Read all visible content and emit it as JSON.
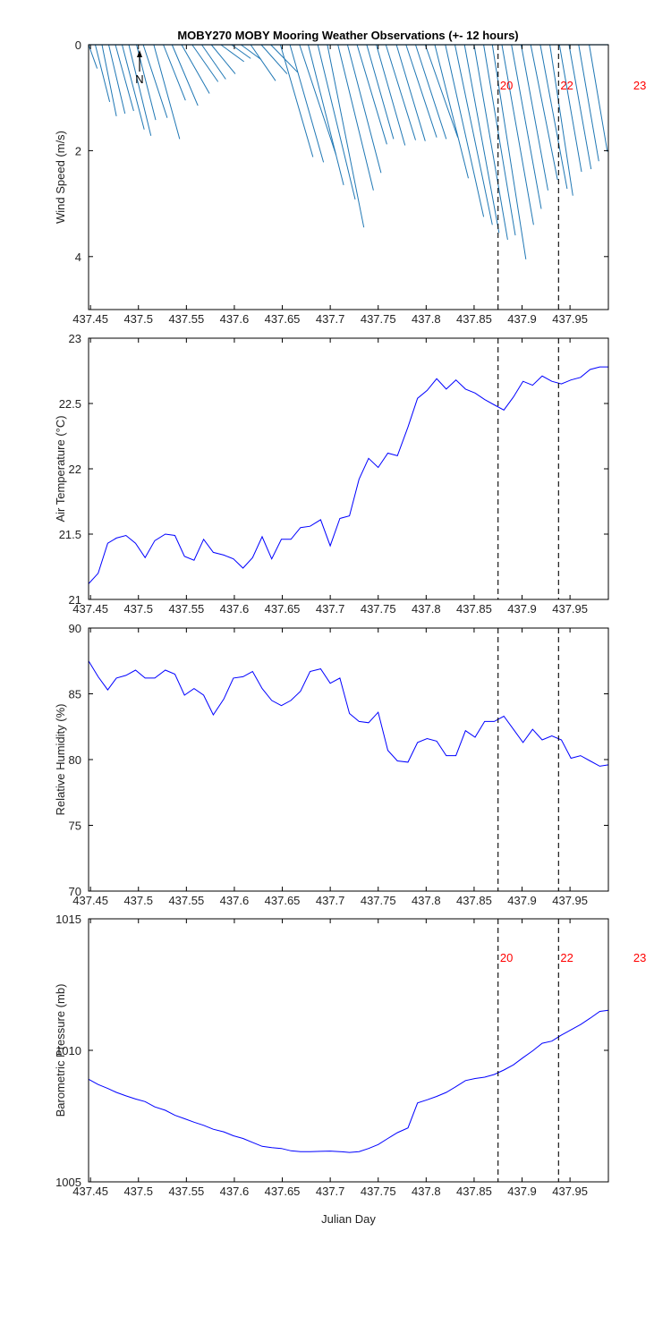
{
  "title": "MOBY270 MOBY Mooring Weather Observations (+- 12 hours)",
  "north_label": "N",
  "colors": {
    "vectors": "#1f77b4",
    "line": "#0000ff",
    "marker": "#ff0000",
    "axis": "#000000"
  },
  "chart_data": [
    {
      "type": "vector",
      "id": "wind",
      "ylabel": "Wind Speed (m/s)",
      "xlim": [
        437.448,
        437.99
      ],
      "ylim": [
        0,
        5
      ],
      "y_reversed": true,
      "x_ticks": [
        437.45,
        437.5,
        437.55,
        437.6,
        437.65,
        437.7,
        437.75,
        437.8,
        437.85,
        437.9,
        437.95
      ],
      "x_tick_labels": [
        "437.45",
        "437.5",
        "437.55",
        "437.6",
        "437.65",
        "437.7",
        "437.75",
        "437.8",
        "437.85",
        "437.9",
        "437.95"
      ],
      "y_ticks": [
        0,
        2,
        4
      ],
      "y_tick_labels": [
        "0",
        "2",
        "4"
      ],
      "vectors": [
        {
          "x": 437.448,
          "tip_x": 437.457,
          "tip_y": 0.45
        },
        {
          "x": 437.455,
          "tip_x": 437.47,
          "tip_y": 1.08
        },
        {
          "x": 437.462,
          "tip_x": 437.477,
          "tip_y": 1.35
        },
        {
          "x": 437.469,
          "tip_x": 437.486,
          "tip_y": 1.3
        },
        {
          "x": 437.476,
          "tip_x": 437.495,
          "tip_y": 1.25
        },
        {
          "x": 437.483,
          "tip_x": 437.506,
          "tip_y": 1.6
        },
        {
          "x": 437.49,
          "tip_x": 437.513,
          "tip_y": 1.72
        },
        {
          "x": 437.498,
          "tip_x": 437.518,
          "tip_y": 1.42
        },
        {
          "x": 437.505,
          "tip_x": 437.53,
          "tip_y": 1.38
        },
        {
          "x": 437.516,
          "tip_x": 437.543,
          "tip_y": 1.78
        },
        {
          "x": 437.526,
          "tip_x": 437.549,
          "tip_y": 1.05
        },
        {
          "x": 437.535,
          "tip_x": 437.562,
          "tip_y": 1.15
        },
        {
          "x": 437.545,
          "tip_x": 437.574,
          "tip_y": 0.92
        },
        {
          "x": 437.556,
          "tip_x": 437.583,
          "tip_y": 0.7
        },
        {
          "x": 437.566,
          "tip_x": 437.591,
          "tip_y": 0.65
        },
        {
          "x": 437.576,
          "tip_x": 437.601,
          "tip_y": 0.55
        },
        {
          "x": 437.586,
          "tip_x": 437.61,
          "tip_y": 0.32
        },
        {
          "x": 437.597,
          "tip_x": 437.617,
          "tip_y": 0.26
        },
        {
          "x": 437.607,
          "tip_x": 437.628,
          "tip_y": 0.28
        },
        {
          "x": 437.617,
          "tip_x": 437.643,
          "tip_y": 0.68
        },
        {
          "x": 437.628,
          "tip_x": 437.655,
          "tip_y": 0.55
        },
        {
          "x": 437.638,
          "tip_x": 437.666,
          "tip_y": 0.52
        },
        {
          "x": 437.648,
          "tip_x": 437.682,
          "tip_y": 2.12
        },
        {
          "x": 437.658,
          "tip_x": 437.693,
          "tip_y": 2.22
        },
        {
          "x": 437.668,
          "tip_x": 437.706,
          "tip_y": 2.08
        },
        {
          "x": 437.677,
          "tip_x": 437.714,
          "tip_y": 2.65
        },
        {
          "x": 437.687,
          "tip_x": 437.726,
          "tip_y": 2.92
        },
        {
          "x": 437.697,
          "tip_x": 437.735,
          "tip_y": 3.45
        },
        {
          "x": 437.708,
          "tip_x": 437.745,
          "tip_y": 2.75
        },
        {
          "x": 437.718,
          "tip_x": 437.753,
          "tip_y": 2.42
        },
        {
          "x": 437.728,
          "tip_x": 437.759,
          "tip_y": 1.88
        },
        {
          "x": 437.738,
          "tip_x": 437.766,
          "tip_y": 1.78
        },
        {
          "x": 437.748,
          "tip_x": 437.778,
          "tip_y": 1.9
        },
        {
          "x": 437.758,
          "tip_x": 437.789,
          "tip_y": 1.8
        },
        {
          "x": 437.769,
          "tip_x": 437.799,
          "tip_y": 1.82
        },
        {
          "x": 437.779,
          "tip_x": 437.811,
          "tip_y": 1.75
        },
        {
          "x": 437.789,
          "tip_x": 437.821,
          "tip_y": 1.78
        },
        {
          "x": 437.799,
          "tip_x": 437.833,
          "tip_y": 1.75
        },
        {
          "x": 437.809,
          "tip_x": 437.844,
          "tip_y": 2.52
        },
        {
          "x": 437.82,
          "tip_x": 437.86,
          "tip_y": 3.25
        },
        {
          "x": 437.83,
          "tip_x": 437.869,
          "tip_y": 3.4
        },
        {
          "x": 437.84,
          "tip_x": 437.876,
          "tip_y": 3.55
        },
        {
          "x": 437.85,
          "tip_x": 437.885,
          "tip_y": 3.68
        },
        {
          "x": 437.86,
          "tip_x": 437.893,
          "tip_y": 3.6
        },
        {
          "x": 437.869,
          "tip_x": 437.904,
          "tip_y": 4.05
        },
        {
          "x": 437.879,
          "tip_x": 437.912,
          "tip_y": 3.4
        },
        {
          "x": 437.889,
          "tip_x": 437.92,
          "tip_y": 3.1
        },
        {
          "x": 437.899,
          "tip_x": 437.927,
          "tip_y": 2.75
        },
        {
          "x": 437.909,
          "tip_x": 437.937,
          "tip_y": 2.55
        },
        {
          "x": 437.919,
          "tip_x": 437.947,
          "tip_y": 2.72
        },
        {
          "x": 437.929,
          "tip_x": 437.953,
          "tip_y": 2.85
        },
        {
          "x": 437.939,
          "tip_x": 437.962,
          "tip_y": 2.4
        },
        {
          "x": 437.949,
          "tip_x": 437.972,
          "tip_y": 2.35
        },
        {
          "x": 437.959,
          "tip_x": 437.98,
          "tip_y": 2.2
        },
        {
          "x": 437.97,
          "tip_x": 437.989,
          "tip_y": 2.02
        }
      ]
    },
    {
      "type": "line",
      "id": "air_temp",
      "ylabel": "Air Temperature (°C)",
      "xlim": [
        437.448,
        437.99
      ],
      "ylim": [
        21,
        23
      ],
      "x_ticks": [
        437.45,
        437.5,
        437.55,
        437.6,
        437.65,
        437.7,
        437.75,
        437.8,
        437.85,
        437.9,
        437.95
      ],
      "x_tick_labels": [
        "437.45",
        "437.5",
        "437.55",
        "437.6",
        "437.65",
        "437.7",
        "437.75",
        "437.8",
        "437.85",
        "437.9",
        "437.95"
      ],
      "y_ticks": [
        21,
        21.5,
        22,
        22.5,
        23
      ],
      "y_tick_labels": [
        "21",
        "21.5",
        "22",
        "22.5",
        "23"
      ],
      "x": [
        437.448,
        437.458,
        437.468,
        437.477,
        437.487,
        437.497,
        437.507,
        437.517,
        437.528,
        437.538,
        437.548,
        437.558,
        437.568,
        437.578,
        437.589,
        437.599,
        437.609,
        437.619,
        437.629,
        437.639,
        437.649,
        437.659,
        437.669,
        437.679,
        437.69,
        437.7,
        437.71,
        437.72,
        437.73,
        437.74,
        437.75,
        437.76,
        437.77,
        437.781,
        437.791,
        437.801,
        437.811,
        437.821,
        437.831,
        437.841,
        437.851,
        437.861,
        437.871,
        437.881,
        437.891,
        437.901,
        437.911,
        437.921,
        437.931,
        437.941,
        437.951,
        437.961,
        437.971,
        437.981,
        437.99
      ],
      "y": [
        21.12,
        21.2,
        21.43,
        21.47,
        21.49,
        21.43,
        21.32,
        21.45,
        21.5,
        21.49,
        21.33,
        21.3,
        21.46,
        21.36,
        21.34,
        21.31,
        21.24,
        21.32,
        21.48,
        21.31,
        21.46,
        21.46,
        21.55,
        21.56,
        21.61,
        21.41,
        21.62,
        21.64,
        21.92,
        22.08,
        22.01,
        22.12,
        22.1,
        22.32,
        22.54,
        22.6,
        22.69,
        22.61,
        22.68,
        22.61,
        22.58,
        22.53,
        22.49,
        22.45,
        22.55,
        22.67,
        22.64,
        22.71,
        22.67,
        22.65,
        22.68,
        22.7,
        22.76,
        22.78,
        22.78
      ]
    },
    {
      "type": "line",
      "id": "humidity",
      "ylabel": "Relative Humidity (%)",
      "xlim": [
        437.448,
        437.99
      ],
      "ylim": [
        70,
        90
      ],
      "x_ticks": [
        437.45,
        437.5,
        437.55,
        437.6,
        437.65,
        437.7,
        437.75,
        437.8,
        437.85,
        437.9,
        437.95
      ],
      "x_tick_labels": [
        "437.45",
        "437.5",
        "437.55",
        "437.6",
        "437.65",
        "437.7",
        "437.75",
        "437.8",
        "437.85",
        "437.9",
        "437.95"
      ],
      "y_ticks": [
        70,
        75,
        80,
        85,
        90
      ],
      "y_tick_labels": [
        "70",
        "75",
        "80",
        "85",
        "90"
      ],
      "x": [
        437.448,
        437.458,
        437.468,
        437.477,
        437.487,
        437.497,
        437.507,
        437.517,
        437.528,
        437.538,
        437.548,
        437.558,
        437.568,
        437.578,
        437.589,
        437.599,
        437.609,
        437.619,
        437.629,
        437.639,
        437.649,
        437.659,
        437.669,
        437.679,
        437.69,
        437.7,
        437.71,
        437.72,
        437.73,
        437.74,
        437.75,
        437.76,
        437.77,
        437.781,
        437.791,
        437.801,
        437.811,
        437.821,
        437.831,
        437.841,
        437.851,
        437.861,
        437.871,
        437.881,
        437.891,
        437.901,
        437.911,
        437.921,
        437.931,
        437.941,
        437.951,
        437.961,
        437.971,
        437.981,
        437.99
      ],
      "y": [
        87.5,
        86.3,
        85.3,
        86.2,
        86.4,
        86.8,
        86.2,
        86.2,
        86.8,
        86.5,
        84.9,
        85.4,
        84.9,
        83.4,
        84.6,
        86.2,
        86.3,
        86.7,
        85.4,
        84.5,
        84.1,
        84.5,
        85.2,
        86.7,
        86.9,
        85.8,
        86.2,
        83.5,
        82.9,
        82.8,
        83.6,
        80.7,
        79.9,
        79.8,
        81.3,
        81.6,
        81.4,
        80.3,
        80.3,
        82.2,
        81.7,
        82.9,
        82.9,
        83.3,
        82.3,
        81.3,
        82.3,
        81.5,
        81.8,
        81.5,
        80.1,
        80.3,
        79.9,
        79.5,
        79.6
      ]
    },
    {
      "type": "line",
      "id": "pressure",
      "ylabel": "Barometric Pressure (mb)",
      "xlabel": "Julian Day",
      "xlim": [
        437.448,
        437.99
      ],
      "ylim": [
        1005,
        1015
      ],
      "x_ticks": [
        437.45,
        437.5,
        437.55,
        437.6,
        437.65,
        437.7,
        437.75,
        437.8,
        437.85,
        437.9,
        437.95
      ],
      "x_tick_labels": [
        "437.45",
        "437.5",
        "437.55",
        "437.6",
        "437.65",
        "437.7",
        "437.75",
        "437.8",
        "437.85",
        "437.9",
        "437.95"
      ],
      "y_ticks": [
        1005,
        1010,
        1015
      ],
      "y_tick_labels": [
        "1005",
        "1010",
        "1015"
      ],
      "x": [
        437.448,
        437.458,
        437.468,
        437.477,
        437.487,
        437.497,
        437.507,
        437.517,
        437.528,
        437.538,
        437.548,
        437.558,
        437.568,
        437.578,
        437.589,
        437.599,
        437.609,
        437.619,
        437.629,
        437.639,
        437.649,
        437.659,
        437.669,
        437.679,
        437.69,
        437.7,
        437.71,
        437.72,
        437.73,
        437.74,
        437.75,
        437.76,
        437.77,
        437.781,
        437.791,
        437.801,
        437.811,
        437.821,
        437.831,
        437.841,
        437.851,
        437.861,
        437.871,
        437.881,
        437.891,
        437.901,
        437.911,
        437.921,
        437.931,
        437.941,
        437.951,
        437.961,
        437.971,
        437.981,
        437.99
      ],
      "y": [
        1008.9,
        1008.7,
        1008.55,
        1008.4,
        1008.27,
        1008.15,
        1008.05,
        1007.85,
        1007.72,
        1007.53,
        1007.4,
        1007.27,
        1007.15,
        1007.0,
        1006.9,
        1006.75,
        1006.65,
        1006.5,
        1006.35,
        1006.3,
        1006.27,
        1006.18,
        1006.15,
        1006.15,
        1006.16,
        1006.17,
        1006.15,
        1006.12,
        1006.15,
        1006.27,
        1006.42,
        1006.65,
        1006.87,
        1007.05,
        1008.0,
        1008.12,
        1008.25,
        1008.4,
        1008.62,
        1008.85,
        1008.93,
        1008.98,
        1009.08,
        1009.25,
        1009.45,
        1009.72,
        1009.98,
        1010.27,
        1010.35,
        1010.58,
        1010.78,
        1010.98,
        1011.22,
        1011.48,
        1011.52
      ]
    }
  ],
  "markers": {
    "x": [
      437.875,
      437.938
    ],
    "labels": [
      {
        "text": "20",
        "x": 437.877
      },
      {
        "text": "22",
        "x": 437.94
      },
      {
        "text": "23",
        "x": 438.016
      }
    ]
  }
}
